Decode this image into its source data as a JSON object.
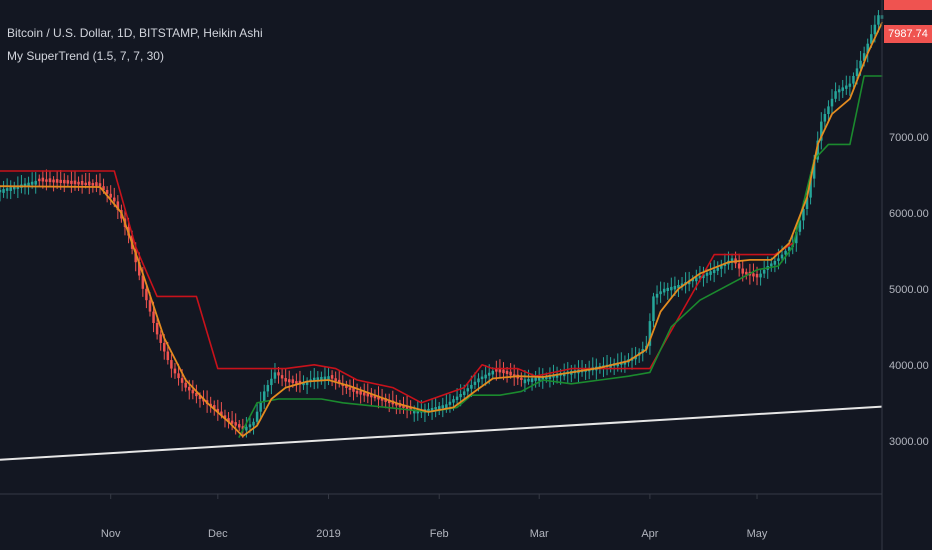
{
  "legend": {
    "line1": "Bitcoin / U.S. Dollar, 1D, BITSTAMP, Heikin Ashi",
    "line2": "My SuperTrend (1.5, 7, 7, 30)"
  },
  "price_labels": {
    "current": "7987.74"
  },
  "colors": {
    "background": "#131722",
    "up": "#26a69a",
    "down": "#ef5350",
    "supertrend_up": "#1b8a2e",
    "supertrend_down": "#c8121b",
    "ma": "#e38b20",
    "trendline": "#e6e6e6",
    "axis_text": "#b2b5be"
  },
  "chart_data": {
    "type": "candlestick",
    "y_ticks": [
      "3000.00",
      "4000.00",
      "5000.00",
      "6000.00",
      "7000.00"
    ],
    "ylim": [
      2300,
      8800
    ],
    "x_tick_labels": [
      "Nov",
      "Dec",
      "2019",
      "Feb",
      "Mar",
      "Apr",
      "May"
    ],
    "x_tick_days": [
      31,
      61,
      92,
      123,
      151,
      182,
      212
    ],
    "x_range_days": [
      0,
      247
    ],
    "close_keypoints": [
      [
        0,
        6300
      ],
      [
        10,
        6420
      ],
      [
        20,
        6380
      ],
      [
        28,
        6350
      ],
      [
        32,
        6150
      ],
      [
        36,
        5700
      ],
      [
        40,
        5000
      ],
      [
        44,
        4400
      ],
      [
        48,
        3950
      ],
      [
        52,
        3700
      ],
      [
        56,
        3550
      ],
      [
        60,
        3420
      ],
      [
        64,
        3250
      ],
      [
        68,
        3150
      ],
      [
        71,
        3250
      ],
      [
        74,
        3650
      ],
      [
        77,
        3900
      ],
      [
        80,
        3780
      ],
      [
        84,
        3740
      ],
      [
        88,
        3830
      ],
      [
        92,
        3850
      ],
      [
        96,
        3720
      ],
      [
        100,
        3620
      ],
      [
        105,
        3560
      ],
      [
        110,
        3480
      ],
      [
        115,
        3400
      ],
      [
        120,
        3420
      ],
      [
        125,
        3480
      ],
      [
        130,
        3650
      ],
      [
        134,
        3820
      ],
      [
        138,
        3920
      ],
      [
        142,
        3880
      ],
      [
        146,
        3800
      ],
      [
        150,
        3830
      ],
      [
        155,
        3870
      ],
      [
        160,
        3920
      ],
      [
        165,
        3960
      ],
      [
        170,
        4000
      ],
      [
        175,
        4050
      ],
      [
        178,
        4120
      ],
      [
        181,
        4250
      ],
      [
        183,
        4900
      ],
      [
        186,
        5000
      ],
      [
        190,
        5050
      ],
      [
        195,
        5150
      ],
      [
        200,
        5250
      ],
      [
        205,
        5400
      ],
      [
        208,
        5200
      ],
      [
        212,
        5150
      ],
      [
        215,
        5300
      ],
      [
        218,
        5400
      ],
      [
        222,
        5600
      ],
      [
        226,
        6200
      ],
      [
        230,
        7200
      ],
      [
        234,
        7600
      ],
      [
        238,
        7700
      ],
      [
        242,
        8100
      ],
      [
        246,
        8600
      ]
    ],
    "ma_keypoints": [
      [
        0,
        6350
      ],
      [
        28,
        6340
      ],
      [
        34,
        6000
      ],
      [
        40,
        5200
      ],
      [
        46,
        4350
      ],
      [
        52,
        3800
      ],
      [
        58,
        3500
      ],
      [
        64,
        3250
      ],
      [
        68,
        3060
      ],
      [
        72,
        3200
      ],
      [
        76,
        3550
      ],
      [
        80,
        3700
      ],
      [
        86,
        3780
      ],
      [
        92,
        3800
      ],
      [
        98,
        3720
      ],
      [
        105,
        3600
      ],
      [
        112,
        3480
      ],
      [
        120,
        3380
      ],
      [
        127,
        3440
      ],
      [
        133,
        3650
      ],
      [
        138,
        3820
      ],
      [
        145,
        3850
      ],
      [
        152,
        3840
      ],
      [
        160,
        3900
      ],
      [
        168,
        3960
      ],
      [
        176,
        4050
      ],
      [
        181,
        4200
      ],
      [
        185,
        4700
      ],
      [
        190,
        5000
      ],
      [
        196,
        5200
      ],
      [
        204,
        5350
      ],
      [
        210,
        5380
      ],
      [
        216,
        5380
      ],
      [
        221,
        5600
      ],
      [
        226,
        6200
      ],
      [
        229,
        6900
      ],
      [
        233,
        7300
      ],
      [
        238,
        7500
      ],
      [
        243,
        8100
      ],
      [
        247,
        8500
      ]
    ],
    "supertrend_down_keypoints": [
      [
        0,
        6550
      ],
      [
        32,
        6550
      ],
      [
        38,
        5550
      ],
      [
        44,
        4900
      ],
      [
        55,
        4900
      ],
      [
        61,
        3950
      ],
      [
        80,
        3950
      ],
      [
        88,
        4000
      ],
      [
        94,
        3950
      ],
      [
        100,
        3800
      ],
      [
        110,
        3700
      ],
      [
        118,
        3500
      ],
      [
        130,
        3700
      ],
      [
        135,
        4000
      ],
      [
        138,
        3950
      ],
      [
        145,
        3950
      ],
      [
        150,
        3850
      ],
      [
        160,
        3950
      ],
      [
        182,
        3950
      ],
      [
        200,
        5450
      ],
      [
        208,
        5450
      ],
      [
        217,
        5450
      ],
      [
        222,
        5600
      ]
    ],
    "supertrend_up_keypoints": [
      [
        67,
        3050
      ],
      [
        72,
        3500
      ],
      [
        78,
        3550
      ],
      [
        90,
        3550
      ],
      [
        96,
        3500
      ],
      [
        120,
        3380
      ],
      [
        128,
        3440
      ],
      [
        132,
        3600
      ],
      [
        140,
        3600
      ],
      [
        146,
        3650
      ],
      [
        152,
        3800
      ],
      [
        160,
        3750
      ],
      [
        168,
        3800
      ],
      [
        176,
        3850
      ],
      [
        182,
        3900
      ],
      [
        188,
        4500
      ],
      [
        196,
        4850
      ],
      [
        206,
        5100
      ],
      [
        212,
        5250
      ],
      [
        218,
        5300
      ],
      [
        222,
        5550
      ],
      [
        228,
        6700
      ],
      [
        232,
        6900
      ],
      [
        238,
        6900
      ],
      [
        242,
        7800
      ],
      [
        247,
        7800
      ]
    ],
    "trendline": {
      "x": [
        0,
        247
      ],
      "y": [
        2750,
        3450
      ]
    }
  }
}
